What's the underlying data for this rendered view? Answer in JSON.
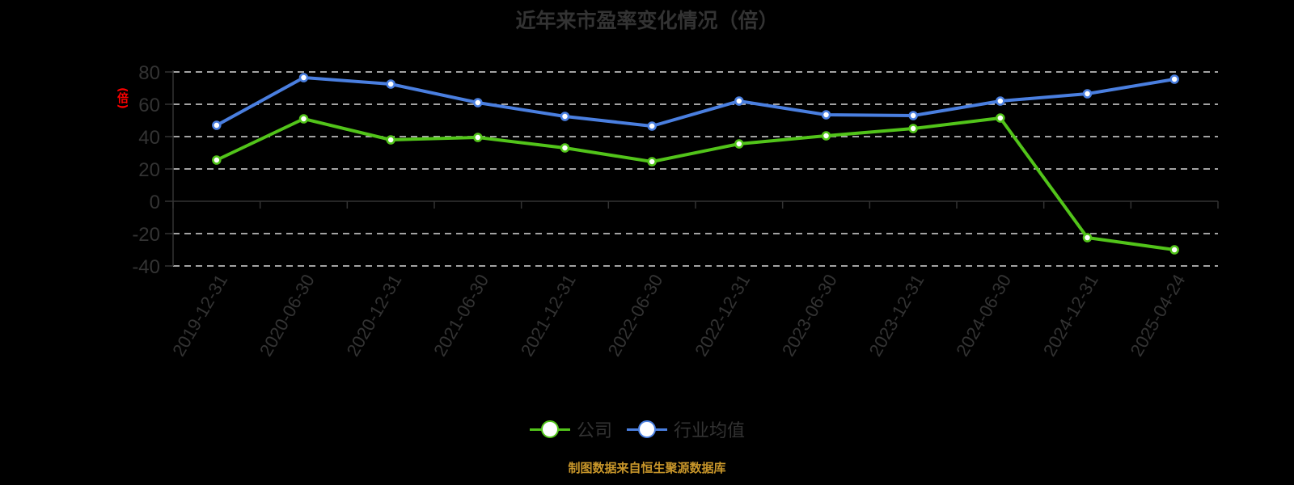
{
  "title": "近年来市盈率变化情况（倍）",
  "y_axis_label": "(倍)",
  "source": "制图数据来自恒生聚源数据库",
  "colors": {
    "background": "#000000",
    "company": "#52c41a",
    "industry": "#4a7fe0",
    "axis_text": "#333333",
    "grid": "#d9d9d9",
    "y_label": "#ff0000",
    "source": "#c8962a"
  },
  "legend": {
    "items": [
      {
        "label": "公司",
        "color": "#52c41a"
      },
      {
        "label": "行业均值",
        "color": "#4a7fe0"
      }
    ]
  },
  "chart_data": {
    "type": "line",
    "title": "近年来市盈率变化情况（倍）",
    "xlabel": "",
    "ylabel": "(倍)",
    "ylim": [
      -40,
      80
    ],
    "yticks": [
      80,
      60,
      40,
      20,
      0,
      -20,
      -40
    ],
    "grid": true,
    "legend_position": "bottom",
    "categories": [
      "2019-12-31",
      "2020-06-30",
      "2020-12-31",
      "2021-06-30",
      "2021-12-31",
      "2022-06-30",
      "2022-12-31",
      "2023-06-30",
      "2023-12-31",
      "2024-06-30",
      "2024-12-31",
      "2025-04-24"
    ],
    "series": [
      {
        "name": "公司",
        "color": "#52c41a",
        "values": [
          25.5,
          51.0,
          38.0,
          39.5,
          33.0,
          24.5,
          35.5,
          40.5,
          45.0,
          51.5,
          -22.5,
          -30.0
        ]
      },
      {
        "name": "行业均值",
        "color": "#4a7fe0",
        "values": [
          47.0,
          76.5,
          72.5,
          61.0,
          52.5,
          46.5,
          62.0,
          53.5,
          53.0,
          62.0,
          66.5,
          75.5
        ]
      }
    ]
  }
}
